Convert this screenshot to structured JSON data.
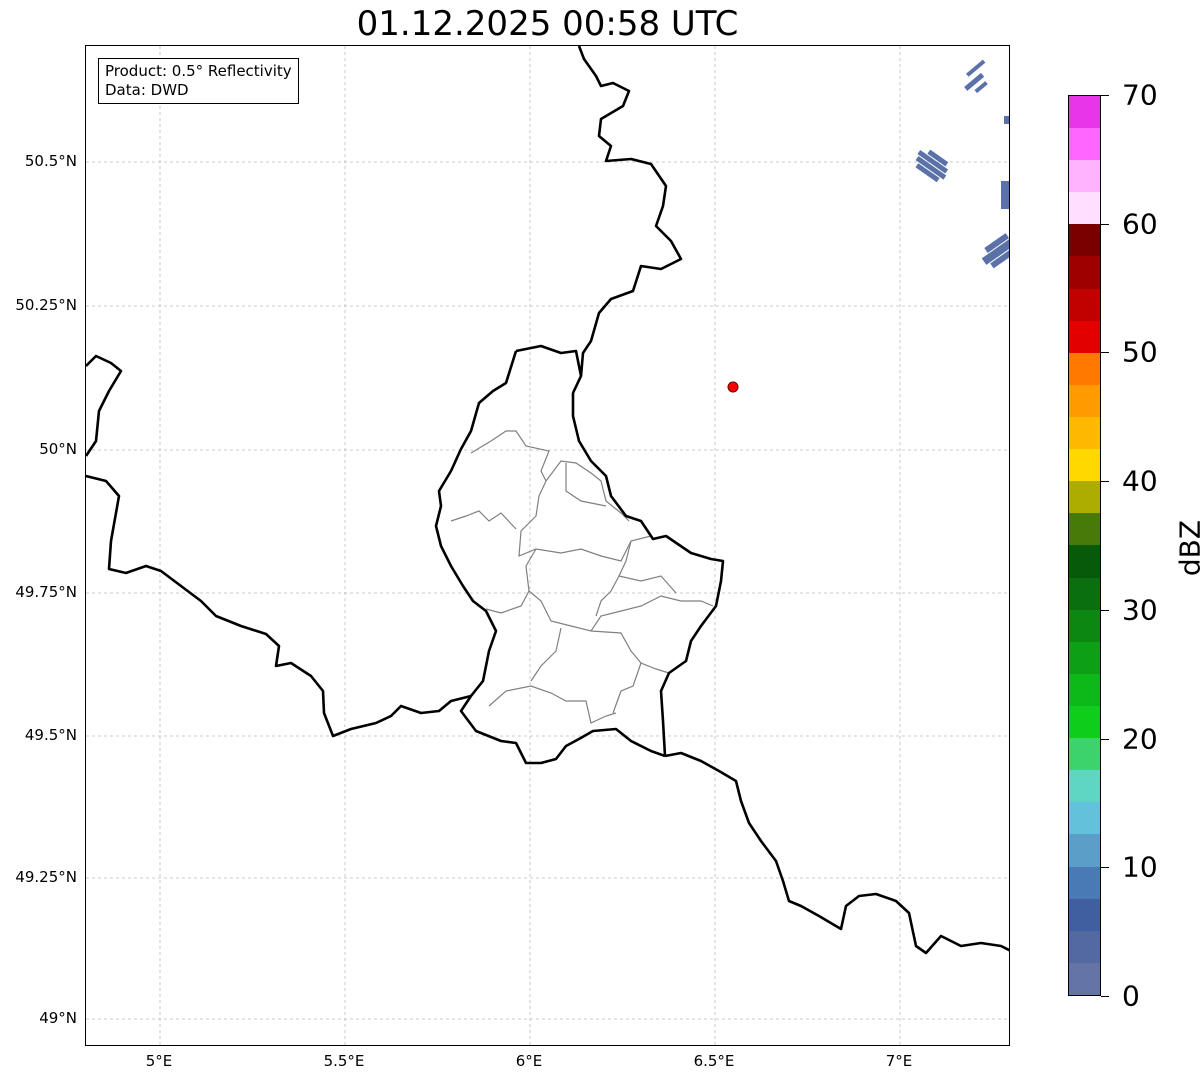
{
  "title": "01.12.2025 00:58 UTC",
  "info": {
    "line1": "Product: 0.5° Reflectivity",
    "line2": "Data: DWD"
  },
  "lat_ticks": [
    "50.5°N",
    "50.25°N",
    "50°N",
    "49.75°N",
    "49.5°N",
    "49.25°N",
    "49°N"
  ],
  "lon_ticks": [
    "5°E",
    "5.5°E",
    "6°E",
    "6.5°E",
    "7°E"
  ],
  "colorbar": {
    "label": "dBZ",
    "ticks": [
      "0",
      "10",
      "20",
      "30",
      "40",
      "50",
      "60",
      "70"
    ],
    "range": [
      0,
      70
    ],
    "step": 2.5,
    "colors": [
      "#6474a6",
      "#536aa0",
      "#405fa0",
      "#4a7ab6",
      "#5b9fc8",
      "#62c2dc",
      "#5fd6c4",
      "#3bd46c",
      "#0ecd1b",
      "#0db819",
      "#0d9f15",
      "#0b8712",
      "#0a700f",
      "#075a0a",
      "#487a0a",
      "#adad00",
      "#ffd800",
      "#ffb800",
      "#ff9a00",
      "#ff7800",
      "#e20000",
      "#c10000",
      "#9e0000",
      "#7a0000",
      "#ffdfff",
      "#ffb3ff",
      "#ff66ff",
      "#e835ea"
    ]
  },
  "colors": {
    "echo": "#5b72a8",
    "station": "#ff0000",
    "border": "#000000",
    "admin": "#808080"
  }
}
